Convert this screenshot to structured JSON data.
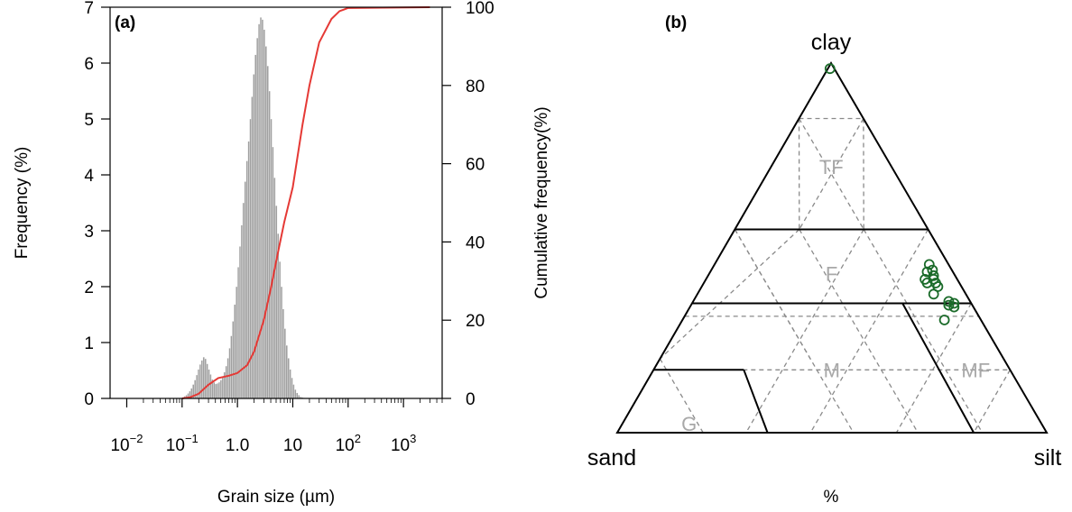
{
  "chart_data": [
    {
      "type": "bar",
      "panel_label": "(a)",
      "xlabel": "Grain size (µm)",
      "ylabel": "Frequency (%)",
      "ylabel_right": "Cumulative frequency(%)",
      "x_scale": "log10",
      "xlim": [
        0.005,
        5000
      ],
      "ylim": [
        0,
        7
      ],
      "ylim_right": [
        0,
        100
      ],
      "x_ticks": [
        {
          "value": 0.01,
          "label": "10",
          "sup": "−2"
        },
        {
          "value": 0.1,
          "label": "10",
          "sup": "−1"
        },
        {
          "value": 1,
          "label": "1.0",
          "sup": ""
        },
        {
          "value": 10,
          "label": "10",
          "sup": ""
        },
        {
          "value": 100,
          "label": "10",
          "sup": "2"
        },
        {
          "value": 1000,
          "label": "10",
          "sup": "3"
        }
      ],
      "y_ticks": [
        "0",
        "1",
        "2",
        "3",
        "4",
        "5",
        "6",
        "7"
      ],
      "y_ticks_right": [
        "0",
        "20",
        "40",
        "60",
        "80",
        "100"
      ],
      "bar_color": "#a0a0a0",
      "line_color": "#e53935",
      "histogram": {
        "bins_per_decade": 32,
        "x_start": 0.1,
        "values": [
          0.02,
          0.04,
          0.06,
          0.09,
          0.13,
          0.18,
          0.25,
          0.33,
          0.42,
          0.52,
          0.61,
          0.68,
          0.74,
          0.71,
          0.62,
          0.52,
          0.43,
          0.34,
          0.29,
          0.26,
          0.27,
          0.29,
          0.33,
          0.39,
          0.47,
          0.58,
          0.72,
          0.9,
          1.12,
          1.38,
          1.68,
          2.0,
          2.35,
          2.72,
          3.1,
          3.5,
          3.88,
          4.25,
          4.6,
          5.0,
          5.4,
          5.8,
          6.15,
          6.45,
          6.7,
          6.82,
          6.78,
          6.6,
          6.3,
          5.95,
          5.5,
          5.0,
          4.5,
          3.95,
          3.45,
          2.95,
          2.45,
          2.0,
          1.6,
          1.25,
          0.95,
          0.72,
          0.52,
          0.37,
          0.25,
          0.16,
          0.1,
          0.06,
          0.03,
          0.02,
          0.01,
          0.005
        ]
      },
      "cumulative": {
        "x": [
          0.1,
          0.14,
          0.2,
          0.3,
          0.45,
          0.7,
          1.0,
          1.5,
          2.0,
          3.0,
          4.0,
          5.0,
          7.0,
          10,
          15,
          20,
          30,
          50,
          70,
          100,
          3000
        ],
        "y": [
          0,
          0.3,
          1.2,
          3.5,
          5.2,
          5.8,
          6.5,
          8.5,
          12,
          20,
          28,
          35,
          45,
          54,
          70,
          80,
          91,
          97,
          99,
          99.8,
          100
        ]
      }
    },
    {
      "type": "ternary",
      "panel_label": "(b)",
      "vertex_labels": {
        "top": "clay",
        "left": "sand",
        "right": "silt"
      },
      "xlabel": "%",
      "region_labels": [
        {
          "text": "TF",
          "clay": 72,
          "sand": 14,
          "silt": 14
        },
        {
          "text": "F",
          "clay": 43,
          "sand": 28.5,
          "silt": 28.5
        },
        {
          "text": "M",
          "clay": 17,
          "sand": 41.5,
          "silt": 41.5
        },
        {
          "text": "MF",
          "clay": 17,
          "sand": 8,
          "silt": 75
        },
        {
          "text": "G",
          "clay": 2.5,
          "sand": 82,
          "silt": 15.5
        }
      ],
      "point_color": "#1b6b2a",
      "points": [
        {
          "clay": 98.5,
          "silt": 0.5
        },
        {
          "clay": 45.5,
          "silt": 50
        },
        {
          "clay": 44.0,
          "silt": 51.5
        },
        {
          "clay": 43.5,
          "silt": 50.5
        },
        {
          "clay": 42.5,
          "silt": 52.5
        },
        {
          "clay": 41.5,
          "silt": 51.0
        },
        {
          "clay": 41.5,
          "silt": 53.0
        },
        {
          "clay": 40.5,
          "silt": 52.0
        },
        {
          "clay": 40.5,
          "silt": 54.0
        },
        {
          "clay": 39.5,
          "silt": 55.0
        },
        {
          "clay": 37.5,
          "silt": 55.0
        },
        {
          "clay": 35.5,
          "silt": 59.5
        },
        {
          "clay": 34.5,
          "silt": 60.0
        },
        {
          "clay": 35.0,
          "silt": 61.0
        },
        {
          "clay": 34.0,
          "silt": 61.5
        },
        {
          "clay": 30.5,
          "silt": 61.0
        }
      ]
    }
  ]
}
